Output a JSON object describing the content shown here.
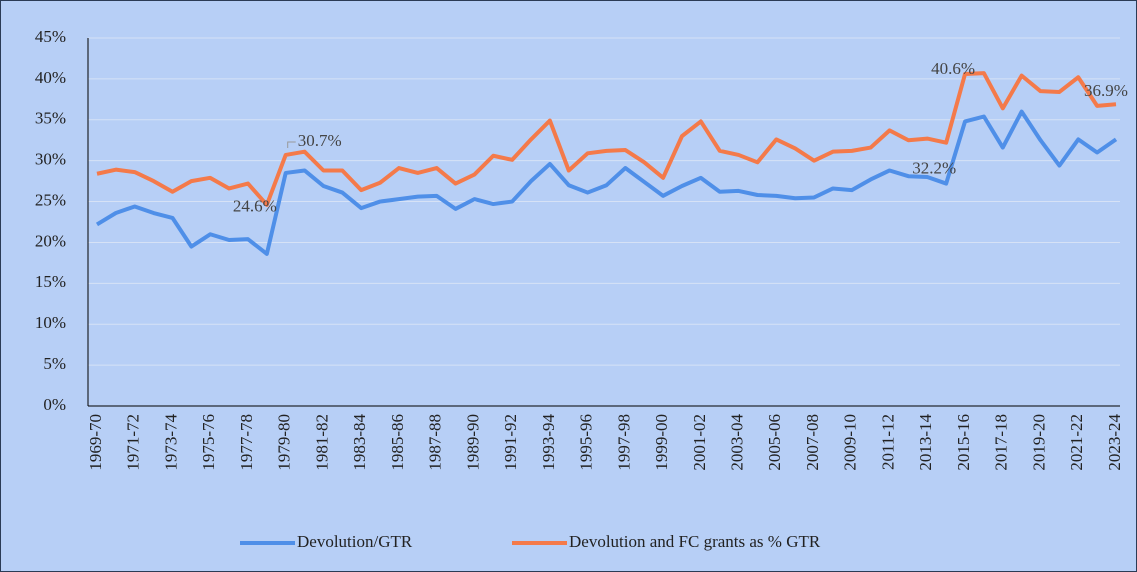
{
  "chart_data": {
    "type": "line",
    "categories": [
      "1969-70",
      null,
      "1971-72",
      null,
      "1973-74",
      null,
      "1975-76",
      null,
      "1977-78",
      null,
      "1979-80",
      null,
      "1981-82",
      null,
      "1983-84",
      null,
      "1985-86",
      null,
      "1987-88",
      null,
      "1989-90",
      null,
      "1991-92",
      null,
      "1993-94",
      null,
      "1995-96",
      null,
      "1997-98",
      null,
      "1999-00",
      null,
      "2001-02",
      null,
      "2003-04",
      null,
      "2005-06",
      null,
      "2007-08",
      null,
      "2009-10",
      null,
      "2011-12",
      null,
      "2013-14",
      null,
      "2015-16",
      null,
      "2017-18",
      null,
      "2019-20",
      null,
      "2021-22",
      null,
      "2023-24"
    ],
    "series": [
      {
        "name": "Devolution/GTR",
        "color": "#4f8fe8",
        "values": [
          22.2,
          23.6,
          24.4,
          23.6,
          23.0,
          19.5,
          21.0,
          20.3,
          20.4,
          18.6,
          28.5,
          28.8,
          26.9,
          26.1,
          24.2,
          25.0,
          25.3,
          25.6,
          25.7,
          24.1,
          25.3,
          24.7,
          25.0,
          27.5,
          29.6,
          27.0,
          26.1,
          27.0,
          29.1,
          27.4,
          25.7,
          26.9,
          27.9,
          26.2,
          26.3,
          25.8,
          25.7,
          25.4,
          25.5,
          26.6,
          26.4,
          27.7,
          28.8,
          28.1,
          28.0,
          27.2,
          34.8,
          35.4,
          31.6,
          36.0,
          32.5,
          29.4,
          32.6,
          31.0,
          32.6
        ]
      },
      {
        "name": "Devolution and FC grants as % GTR",
        "color": "#f47a4a",
        "values": [
          28.4,
          28.9,
          28.6,
          27.5,
          26.2,
          27.5,
          27.9,
          26.6,
          27.2,
          24.6,
          30.7,
          31.1,
          28.8,
          28.8,
          26.4,
          27.3,
          29.1,
          28.5,
          29.1,
          27.2,
          28.3,
          30.6,
          30.1,
          32.6,
          34.9,
          28.8,
          30.9,
          31.2,
          31.3,
          29.8,
          27.9,
          33.0,
          34.8,
          31.2,
          30.7,
          29.8,
          32.6,
          31.5,
          30.0,
          31.1,
          31.2,
          31.6,
          33.7,
          32.5,
          32.7,
          32.2,
          40.6,
          40.7,
          36.4,
          40.4,
          38.5,
          38.4,
          40.2,
          36.7,
          36.9
        ],
        "value_labels": [
          null,
          null,
          null,
          null,
          null,
          null,
          null,
          null,
          null,
          "24.6%",
          "30.7%",
          null,
          null,
          null,
          null,
          null,
          null,
          null,
          null,
          null,
          null,
          null,
          null,
          null,
          null,
          null,
          null,
          null,
          null,
          null,
          null,
          null,
          null,
          null,
          null,
          null,
          null,
          null,
          null,
          null,
          null,
          null,
          null,
          null,
          null,
          "32.2%",
          "40.6%",
          null,
          null,
          null,
          null,
          null,
          null,
          null,
          "36.9%"
        ]
      }
    ],
    "ylim": [
      0,
      45
    ],
    "yticks": [
      {
        "value": 0,
        "label": "0%"
      },
      {
        "value": 5,
        "label": "5%"
      },
      {
        "value": 10,
        "label": "10%"
      },
      {
        "value": 15,
        "label": "15%"
      },
      {
        "value": 20,
        "label": "20%"
      },
      {
        "value": 25,
        "label": "25%"
      },
      {
        "value": 30,
        "label": "30%"
      },
      {
        "value": 35,
        "label": "35%"
      },
      {
        "value": 40,
        "label": "40%"
      },
      {
        "value": 45,
        "label": "45%"
      }
    ],
    "grid": true,
    "legend": "bottom"
  }
}
